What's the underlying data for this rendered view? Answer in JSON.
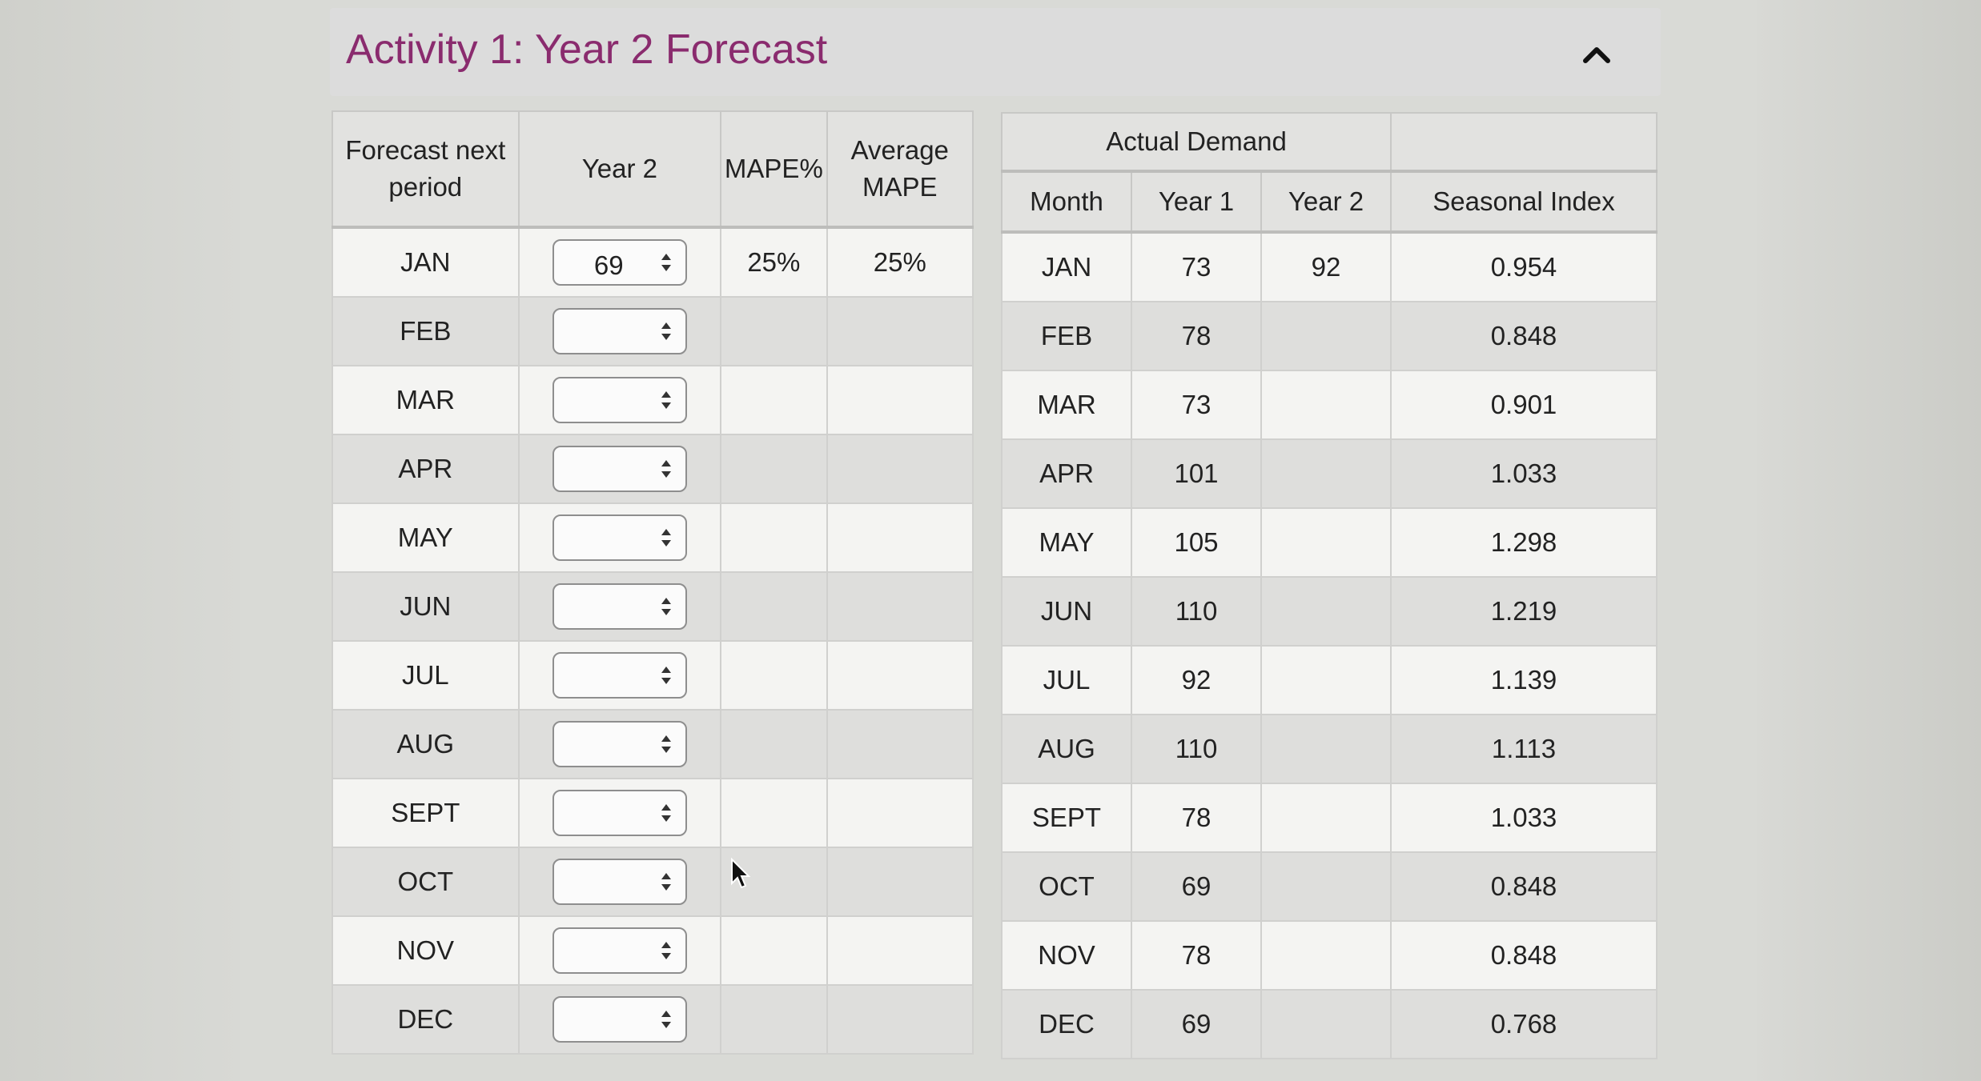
{
  "header": {
    "title": "Activity 1: Year 2 Forecast"
  },
  "forecast_table": {
    "headers": {
      "period_line1": "Forecast next",
      "period_line2": "period",
      "year2": "Year 2",
      "mape": "MAPE%",
      "avg_line1": "Average",
      "avg_line2": "MAPE"
    },
    "rows": [
      {
        "month": "JAN",
        "value": "69",
        "mape": "25%",
        "avg_mape": "25%"
      },
      {
        "month": "FEB",
        "value": "",
        "mape": "",
        "avg_mape": ""
      },
      {
        "month": "MAR",
        "value": "",
        "mape": "",
        "avg_mape": ""
      },
      {
        "month": "APR",
        "value": "",
        "mape": "",
        "avg_mape": ""
      },
      {
        "month": "MAY",
        "value": "",
        "mape": "",
        "avg_mape": ""
      },
      {
        "month": "JUN",
        "value": "",
        "mape": "",
        "avg_mape": ""
      },
      {
        "month": "JUL",
        "value": "",
        "mape": "",
        "avg_mape": ""
      },
      {
        "month": "AUG",
        "value": "",
        "mape": "",
        "avg_mape": ""
      },
      {
        "month": "SEPT",
        "value": "",
        "mape": "",
        "avg_mape": ""
      },
      {
        "month": "OCT",
        "value": "",
        "mape": "",
        "avg_mape": ""
      },
      {
        "month": "NOV",
        "value": "",
        "mape": "",
        "avg_mape": ""
      },
      {
        "month": "DEC",
        "value": "",
        "mape": "",
        "avg_mape": ""
      }
    ]
  },
  "demand_table": {
    "headers": {
      "group": "Actual Demand",
      "month": "Month",
      "year1": "Year 1",
      "year2": "Year 2",
      "seasonal_index": "Seasonal Index"
    },
    "rows": [
      {
        "month": "JAN",
        "year1": "73",
        "year2": "92",
        "index": "0.954"
      },
      {
        "month": "FEB",
        "year1": "78",
        "year2": "",
        "index": "0.848"
      },
      {
        "month": "MAR",
        "year1": "73",
        "year2": "",
        "index": "0.901"
      },
      {
        "month": "APR",
        "year1": "101",
        "year2": "",
        "index": "1.033"
      },
      {
        "month": "MAY",
        "year1": "105",
        "year2": "",
        "index": "1.298"
      },
      {
        "month": "JUN",
        "year1": "110",
        "year2": "",
        "index": "1.219"
      },
      {
        "month": "JUL",
        "year1": "92",
        "year2": "",
        "index": "1.139"
      },
      {
        "month": "AUG",
        "year1": "110",
        "year2": "",
        "index": "1.113"
      },
      {
        "month": "SEPT",
        "year1": "78",
        "year2": "",
        "index": "1.033"
      },
      {
        "month": "OCT",
        "year1": "69",
        "year2": "",
        "index": "0.848"
      },
      {
        "month": "NOV",
        "year1": "78",
        "year2": "",
        "index": "0.848"
      },
      {
        "month": "DEC",
        "year1": "69",
        "year2": "",
        "index": "0.768"
      }
    ]
  },
  "colors": {
    "title": "#8a2b6e",
    "row_light": "#f4f4f2",
    "row_dark": "#dededc",
    "header_bg": "#e2e2e0"
  }
}
